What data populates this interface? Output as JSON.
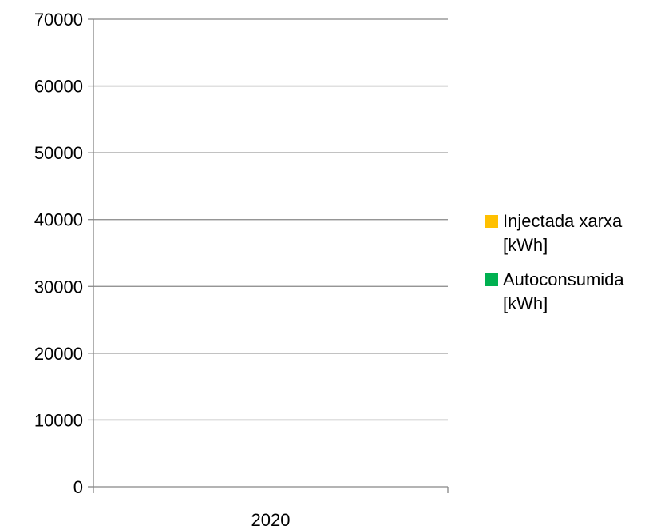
{
  "chart_data": {
    "type": "bar",
    "categories": [
      "2020"
    ],
    "series": [
      {
        "name": "Injectada xarxa [kWh]",
        "color": "#FFC000",
        "values": [
          0
        ]
      },
      {
        "name": "Autoconsumida [kWh]",
        "color": "#00B050",
        "values": [
          0
        ]
      }
    ],
    "stacked": true,
    "ylim": [
      0,
      70000
    ],
    "yticks": [
      "0",
      "10000",
      "20000",
      "30000",
      "40000",
      "50000",
      "60000",
      "70000"
    ],
    "grid": true,
    "legend_position": "right",
    "title": "",
    "xlabel": "",
    "ylabel": ""
  }
}
